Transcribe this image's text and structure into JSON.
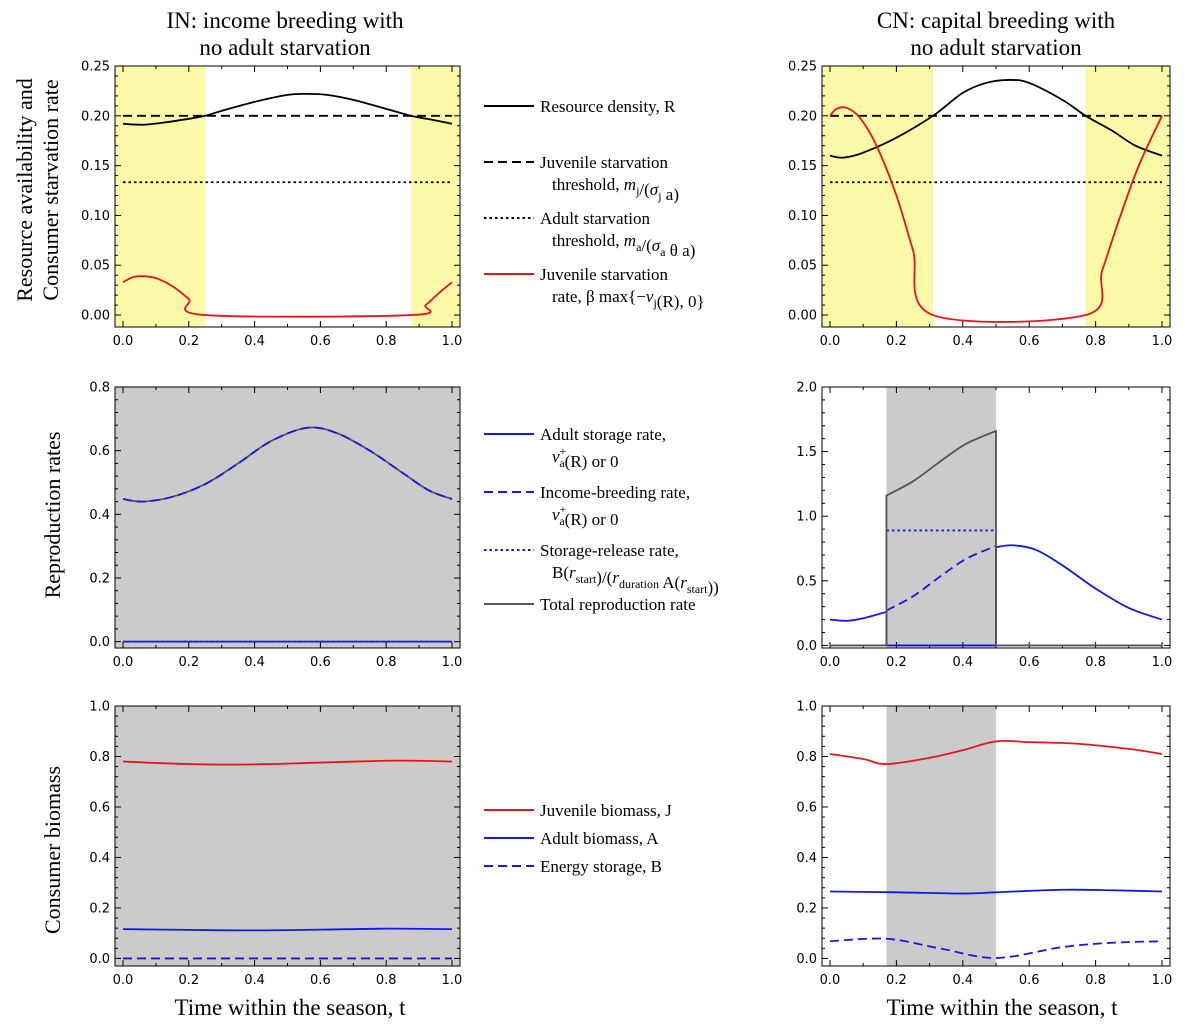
{
  "titles": {
    "left": [
      "IN: income breeding with",
      "no adult starvation"
    ],
    "right": [
      "CN: capital breeding with",
      "no adult starvation"
    ]
  },
  "ylabels": {
    "row1": [
      "Resource availability and",
      "Consumer starvation rate"
    ],
    "row2": "Reproduction rates",
    "row3": "Consumer biomass"
  },
  "xlabel": "Time within the season, t",
  "colors": {
    "black": "#000000",
    "red": "#e8141a",
    "blue": "#1418e6",
    "gray": "#555555",
    "yellow_fill": "#fbf8a8",
    "gray_fill": "#cbcbcb"
  },
  "legends": {
    "row1": [
      {
        "style": "solid",
        "color": "black",
        "lines": [
          "Resource density, R"
        ]
      },
      {
        "style": "dashed",
        "color": "black",
        "lines": [
          "Juvenile starvation",
          "threshold, m_j/(σ_j a)"
        ]
      },
      {
        "style": "dotted",
        "color": "black",
        "lines": [
          "Adult starvation",
          "threshold, m_a/(σ_a θ a)"
        ]
      },
      {
        "style": "solid",
        "color": "red",
        "lines": [
          "Juvenile starvation",
          "rate, β max{−ν_j(R), 0}"
        ]
      }
    ],
    "row2": [
      {
        "style": "solid",
        "color": "blue",
        "lines": [
          "Adult storage rate,",
          "ν_a^+(R) or 0"
        ]
      },
      {
        "style": "dashed",
        "color": "blue",
        "lines": [
          "Income-breeding rate,",
          "ν_a^+(R) or 0"
        ]
      },
      {
        "style": "dotted",
        "color": "blue",
        "lines": [
          "Storage-release rate,",
          "B(r_start)/(r_duration A(r_start))"
        ]
      },
      {
        "style": "solid",
        "color": "gray",
        "lines": [
          "Total reproduction rate"
        ]
      }
    ],
    "row3": [
      {
        "style": "solid",
        "color": "red",
        "lines": [
          "Juvenile biomass, J"
        ]
      },
      {
        "style": "solid",
        "color": "blue",
        "lines": [
          "Adult biomass, A"
        ]
      },
      {
        "style": "dashed",
        "color": "blue",
        "lines": [
          "Energy storage, B"
        ]
      }
    ]
  },
  "chart_data": [
    {
      "id": "IN-resource",
      "type": "line",
      "xlim": [
        0,
        1
      ],
      "ylim": [
        -0.012,
        0.25
      ],
      "xticks": [
        "0.0",
        "0.2",
        "0.4",
        "0.6",
        "0.8",
        "1.0"
      ],
      "yticks": [
        "0.00",
        "0.05",
        "0.10",
        "0.15",
        "0.20",
        "0.25"
      ],
      "shaded": [
        {
          "from": 0,
          "to": 0.25,
          "fill": "yellow_fill"
        },
        {
          "from": 0.875,
          "to": 1,
          "fill": "yellow_fill"
        }
      ],
      "series": [
        {
          "name": "Resource density, R",
          "color": "black",
          "style": "solid",
          "x": [
            0,
            0.06,
            0.12,
            0.2,
            0.25,
            0.3,
            0.4,
            0.5,
            0.56,
            0.62,
            0.7,
            0.8,
            0.875,
            0.94,
            1
          ],
          "y": [
            0.192,
            0.191,
            0.193,
            0.197,
            0.2,
            0.205,
            0.214,
            0.221,
            0.222,
            0.221,
            0.216,
            0.207,
            0.2,
            0.196,
            0.192
          ]
        },
        {
          "name": "Juvenile starvation threshold",
          "color": "black",
          "style": "dashed",
          "x": [
            0,
            1
          ],
          "y": [
            0.2,
            0.2
          ]
        },
        {
          "name": "Adult starvation threshold",
          "color": "black",
          "style": "dotted",
          "x": [
            0,
            1
          ],
          "y": [
            0.1333,
            0.1333
          ]
        },
        {
          "name": "Juvenile starvation rate",
          "color": "red",
          "style": "solid",
          "x": [
            0,
            0.03,
            0.06,
            0.1,
            0.15,
            0.2,
            0.25,
            0.875,
            0.92,
            0.96,
            1
          ],
          "y": [
            0.033,
            0.038,
            0.039,
            0.037,
            0.029,
            0.016,
            0,
            0,
            0.01,
            0.022,
            0.033
          ]
        }
      ]
    },
    {
      "id": "CN-resource",
      "type": "line",
      "xlim": [
        0,
        1
      ],
      "ylim": [
        -0.012,
        0.25
      ],
      "xticks": [
        "0.0",
        "0.2",
        "0.4",
        "0.6",
        "0.8",
        "1.0"
      ],
      "yticks": [
        "0.00",
        "0.05",
        "0.10",
        "0.15",
        "0.20",
        "0.25"
      ],
      "shaded": [
        {
          "from": 0,
          "to": 0.31,
          "fill": "yellow_fill"
        },
        {
          "from": 0.77,
          "to": 1,
          "fill": "yellow_fill"
        }
      ],
      "series": [
        {
          "name": "Resource density, R",
          "color": "black",
          "style": "solid",
          "x": [
            0,
            0.04,
            0.1,
            0.2,
            0.31,
            0.4,
            0.47,
            0.54,
            0.6,
            0.7,
            0.77,
            0.85,
            0.92,
            1
          ],
          "y": [
            0.16,
            0.158,
            0.163,
            0.178,
            0.2,
            0.223,
            0.233,
            0.236,
            0.233,
            0.216,
            0.2,
            0.185,
            0.17,
            0.16
          ]
        },
        {
          "name": "Juvenile starvation threshold",
          "color": "black",
          "style": "dashed",
          "x": [
            0,
            1
          ],
          "y": [
            0.2,
            0.2
          ]
        },
        {
          "name": "Adult starvation threshold",
          "color": "black",
          "style": "dotted",
          "x": [
            0,
            1
          ],
          "y": [
            0.1333,
            0.1333
          ]
        },
        {
          "name": "Juvenile starvation rate",
          "color": "red",
          "style": "solid",
          "x": [
            0,
            0.02,
            0.05,
            0.09,
            0.14,
            0.2,
            0.25,
            0.31,
            0.77,
            0.82,
            0.87,
            0.93,
            1
          ],
          "y": [
            0.2,
            0.207,
            0.208,
            0.198,
            0.17,
            0.12,
            0.065,
            0,
            0,
            0.045,
            0.095,
            0.15,
            0.2
          ]
        }
      ]
    },
    {
      "id": "IN-reproduction",
      "type": "line",
      "xlim": [
        0,
        1
      ],
      "ylim": [
        -0.02,
        0.8
      ],
      "xticks": [
        "0.0",
        "0.2",
        "0.4",
        "0.6",
        "0.8",
        "1.0"
      ],
      "yticks": [
        "0.0",
        "0.2",
        "0.4",
        "0.6",
        "0.8"
      ],
      "shaded": [
        {
          "from": 0,
          "to": 1,
          "fill": "gray_fill"
        }
      ],
      "series": [
        {
          "name": "Total reproduction rate",
          "color": "gray",
          "style": "solid",
          "x": [
            0,
            0.06,
            0.15,
            0.25,
            0.35,
            0.45,
            0.56,
            0.65,
            0.75,
            0.85,
            0.93,
            1
          ],
          "y": [
            0.448,
            0.44,
            0.455,
            0.495,
            0.56,
            0.63,
            0.672,
            0.655,
            0.6,
            0.53,
            0.475,
            0.448
          ]
        },
        {
          "name": "Income-breeding rate",
          "color": "blue",
          "style": "dashed",
          "x": [
            0,
            0.06,
            0.15,
            0.25,
            0.35,
            0.45,
            0.56,
            0.65,
            0.75,
            0.85,
            0.93,
            1
          ],
          "y": [
            0.448,
            0.44,
            0.455,
            0.495,
            0.56,
            0.63,
            0.672,
            0.655,
            0.6,
            0.53,
            0.475,
            0.448
          ]
        },
        {
          "name": "Adult storage rate",
          "color": "blue",
          "style": "solid",
          "x": [
            0,
            1
          ],
          "y": [
            0,
            0
          ]
        },
        {
          "name": "Storage-release rate",
          "color": "blue",
          "style": "dotted",
          "x": [
            0,
            1
          ],
          "y": [
            0,
            0
          ]
        }
      ]
    },
    {
      "id": "CN-reproduction",
      "type": "line",
      "xlim": [
        0,
        1
      ],
      "ylim": [
        -0.02,
        2.0
      ],
      "xticks": [
        "0.0",
        "0.2",
        "0.4",
        "0.6",
        "0.8",
        "1.0"
      ],
      "yticks": [
        "0.0",
        "0.5",
        "1.0",
        "1.5",
        "2.0"
      ],
      "shaded": [
        {
          "from": 0.17,
          "to": 0.5,
          "fill": "gray_fill"
        }
      ],
      "series": [
        {
          "name": "Adult storage rate",
          "color": "blue",
          "style": "solid",
          "x": [
            0,
            0.05,
            0.1,
            0.17,
            0.17,
            0.5,
            0.5,
            0.55,
            0.62,
            0.7,
            0.8,
            0.9,
            1
          ],
          "y": [
            0.2,
            0.19,
            0.21,
            0.26,
            0,
            0,
            0.76,
            0.775,
            0.74,
            0.62,
            0.44,
            0.29,
            0.2
          ]
        },
        {
          "name": "Income-breeding rate",
          "color": "blue",
          "style": "dashed",
          "x": [
            0.17,
            0.25,
            0.33,
            0.41,
            0.5
          ],
          "y": [
            0.27,
            0.38,
            0.53,
            0.67,
            0.77
          ]
        },
        {
          "name": "Storage-release rate",
          "color": "blue",
          "style": "dotted",
          "x": [
            0.17,
            0.5
          ],
          "y": [
            0.89,
            0.89
          ]
        },
        {
          "name": "Total reproduction rate",
          "color": "gray",
          "style": "solid",
          "x": [
            0,
            0.17,
            0.17,
            0.25,
            0.33,
            0.41,
            0.5,
            0.5,
            1
          ],
          "y": [
            0,
            0,
            1.16,
            1.27,
            1.42,
            1.56,
            1.66,
            0,
            0
          ]
        }
      ]
    },
    {
      "id": "IN-biomass",
      "type": "line",
      "xlim": [
        0,
        1
      ],
      "ylim": [
        -0.03,
        1.0
      ],
      "xticks": [
        "0.0",
        "0.2",
        "0.4",
        "0.6",
        "0.8",
        "1.0"
      ],
      "yticks": [
        "0.0",
        "0.2",
        "0.4",
        "0.6",
        "0.8",
        "1.0"
      ],
      "shaded": [
        {
          "from": 0,
          "to": 1,
          "fill": "gray_fill"
        }
      ],
      "series": [
        {
          "name": "Juvenile biomass, J",
          "color": "red",
          "style": "solid",
          "x": [
            0,
            0.15,
            0.3,
            0.45,
            0.6,
            0.8,
            0.9,
            1
          ],
          "y": [
            0.78,
            0.772,
            0.768,
            0.77,
            0.776,
            0.783,
            0.783,
            0.78
          ]
        },
        {
          "name": "Adult biomass, A",
          "color": "blue",
          "style": "solid",
          "x": [
            0,
            0.2,
            0.4,
            0.6,
            0.8,
            1
          ],
          "y": [
            0.116,
            0.113,
            0.111,
            0.114,
            0.118,
            0.116
          ]
        },
        {
          "name": "Energy storage, B",
          "color": "blue",
          "style": "dashed",
          "x": [
            0,
            1
          ],
          "y": [
            0,
            0
          ]
        }
      ]
    },
    {
      "id": "CN-biomass",
      "type": "line",
      "xlim": [
        0,
        1
      ],
      "ylim": [
        -0.03,
        1.0
      ],
      "xticks": [
        "0.0",
        "0.2",
        "0.4",
        "0.6",
        "0.8",
        "1.0"
      ],
      "yticks": [
        "0.0",
        "0.2",
        "0.4",
        "0.6",
        "0.8",
        "1.0"
      ],
      "shaded": [
        {
          "from": 0.17,
          "to": 0.5,
          "fill": "gray_fill"
        }
      ],
      "series": [
        {
          "name": "Juvenile biomass, J",
          "color": "red",
          "style": "solid",
          "x": [
            0,
            0.1,
            0.17,
            0.3,
            0.4,
            0.5,
            0.6,
            0.75,
            0.9,
            1
          ],
          "y": [
            0.81,
            0.79,
            0.77,
            0.795,
            0.825,
            0.86,
            0.857,
            0.85,
            0.83,
            0.81
          ]
        },
        {
          "name": "Adult biomass, A",
          "color": "blue",
          "style": "solid",
          "x": [
            0,
            0.2,
            0.4,
            0.5,
            0.7,
            0.85,
            1
          ],
          "y": [
            0.265,
            0.262,
            0.257,
            0.262,
            0.272,
            0.27,
            0.265
          ]
        },
        {
          "name": "Energy storage, B",
          "color": "blue",
          "style": "dashed",
          "x": [
            0,
            0.17,
            0.33,
            0.5,
            0.7,
            0.85,
            1
          ],
          "y": [
            0.068,
            0.078,
            0.04,
            0.002,
            0.045,
            0.062,
            0.068
          ]
        }
      ]
    }
  ]
}
